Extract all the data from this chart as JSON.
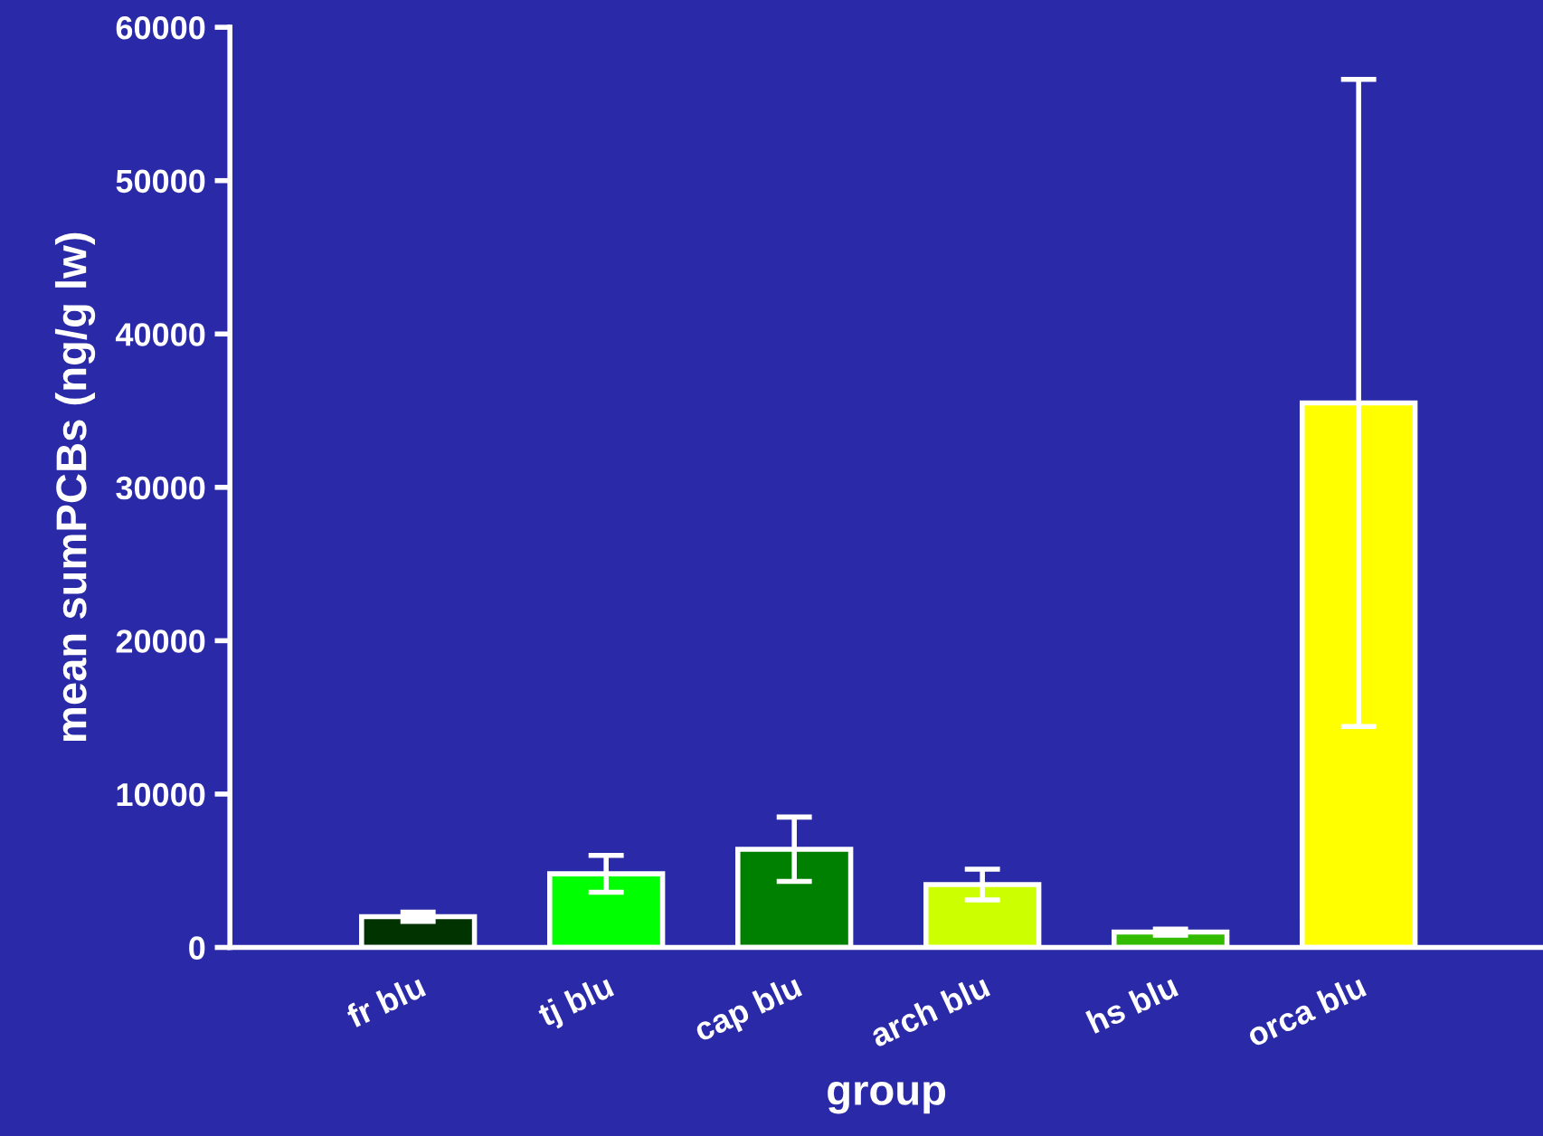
{
  "chart_data": {
    "type": "bar",
    "xlabel": "group",
    "ylabel": "mean sumPCBs (ng/g lw)",
    "categories": [
      "fr blu",
      "tj blu",
      "cap blu",
      "arch blu",
      "hs blu",
      "orca blu"
    ],
    "values": [
      2000,
      4800,
      6400,
      4100,
      1000,
      35500
    ],
    "errors": [
      300,
      1200,
      2100,
      1000,
      200,
      21100
    ],
    "colors": [
      "#003300",
      "#00ff00",
      "#008000",
      "#ccff00",
      "#33bb00",
      "#ffff00"
    ],
    "ylim": [
      0,
      60000
    ],
    "yticks": [
      0,
      10000,
      20000,
      30000,
      40000,
      50000,
      60000
    ],
    "grid": false,
    "legend": false
  }
}
